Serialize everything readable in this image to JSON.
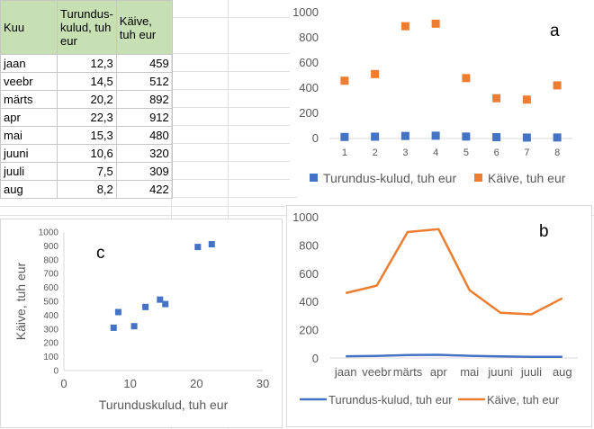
{
  "table": {
    "headers": [
      "Kuu",
      "Turundus-kulud, tuh eur",
      "Käive, tuh eur"
    ],
    "rows": [
      [
        "jaan",
        "12,3",
        "459"
      ],
      [
        "veebr",
        "14,5",
        "512"
      ],
      [
        "märts",
        "20,2",
        "892"
      ],
      [
        "apr",
        "22,3",
        "912"
      ],
      [
        "mai",
        "15,3",
        "480"
      ],
      [
        "juuni",
        "10,6",
        "320"
      ],
      [
        "juuli",
        "7,5",
        "309"
      ],
      [
        "aug",
        "8,2",
        "422"
      ]
    ]
  },
  "colors": {
    "blue": "#4472c4",
    "orange": "#ed7d31",
    "header_fill": "#c6e0b4"
  },
  "chart_data": [
    {
      "type": "scatter",
      "label": "a",
      "x": [
        1,
        2,
        3,
        4,
        5,
        6,
        7,
        8
      ],
      "xticks": [
        "1",
        "2",
        "3",
        "4",
        "5",
        "6",
        "7",
        "8"
      ],
      "series": [
        {
          "name": "Turundus-kulud, tuh eur",
          "values": [
            12.3,
            14.5,
            20.2,
            22.3,
            15.3,
            10.6,
            7.5,
            8.2
          ],
          "color": "#4472c4"
        },
        {
          "name": "Käive, tuh eur",
          "values": [
            459,
            512,
            892,
            912,
            480,
            320,
            309,
            422
          ],
          "color": "#ed7d31"
        }
      ],
      "ylim": [
        0,
        1000
      ],
      "yticks": [
        0,
        200,
        400,
        600,
        800,
        1000
      ],
      "grid": false,
      "legend": "bottom"
    },
    {
      "type": "line",
      "label": "b",
      "categories": [
        "jaan",
        "veebr",
        "märts",
        "apr",
        "mai",
        "juuni",
        "juuli",
        "aug"
      ],
      "series": [
        {
          "name": "Turundus-kulud, tuh eur",
          "values": [
            12.3,
            14.5,
            20.2,
            22.3,
            15.3,
            10.6,
            7.5,
            8.2
          ],
          "color": "#4472c4"
        },
        {
          "name": "Käive, tuh eur",
          "values": [
            459,
            512,
            892,
            912,
            480,
            320,
            309,
            422
          ],
          "color": "#ed7d31"
        }
      ],
      "ylim": [
        0,
        1000
      ],
      "yticks": [
        0,
        200,
        400,
        600,
        800,
        1000
      ],
      "grid": false,
      "legend": "bottom"
    },
    {
      "type": "scatter",
      "label": "c",
      "x": [
        12.3,
        14.5,
        20.2,
        22.3,
        15.3,
        10.6,
        7.5,
        8.2
      ],
      "y": [
        459,
        512,
        892,
        912,
        480,
        320,
        309,
        422
      ],
      "color": "#4472c4",
      "xlabel": "Turunduskulud, tuh eur",
      "ylabel": "Käive, tuh eur",
      "xlim": [
        0,
        30
      ],
      "xticks": [
        0,
        10,
        20,
        30
      ],
      "ylim": [
        0,
        1000
      ],
      "yticks": [
        0,
        100,
        200,
        300,
        400,
        500,
        600,
        700,
        800,
        900,
        1000
      ],
      "grid": false,
      "legend": "none"
    }
  ]
}
